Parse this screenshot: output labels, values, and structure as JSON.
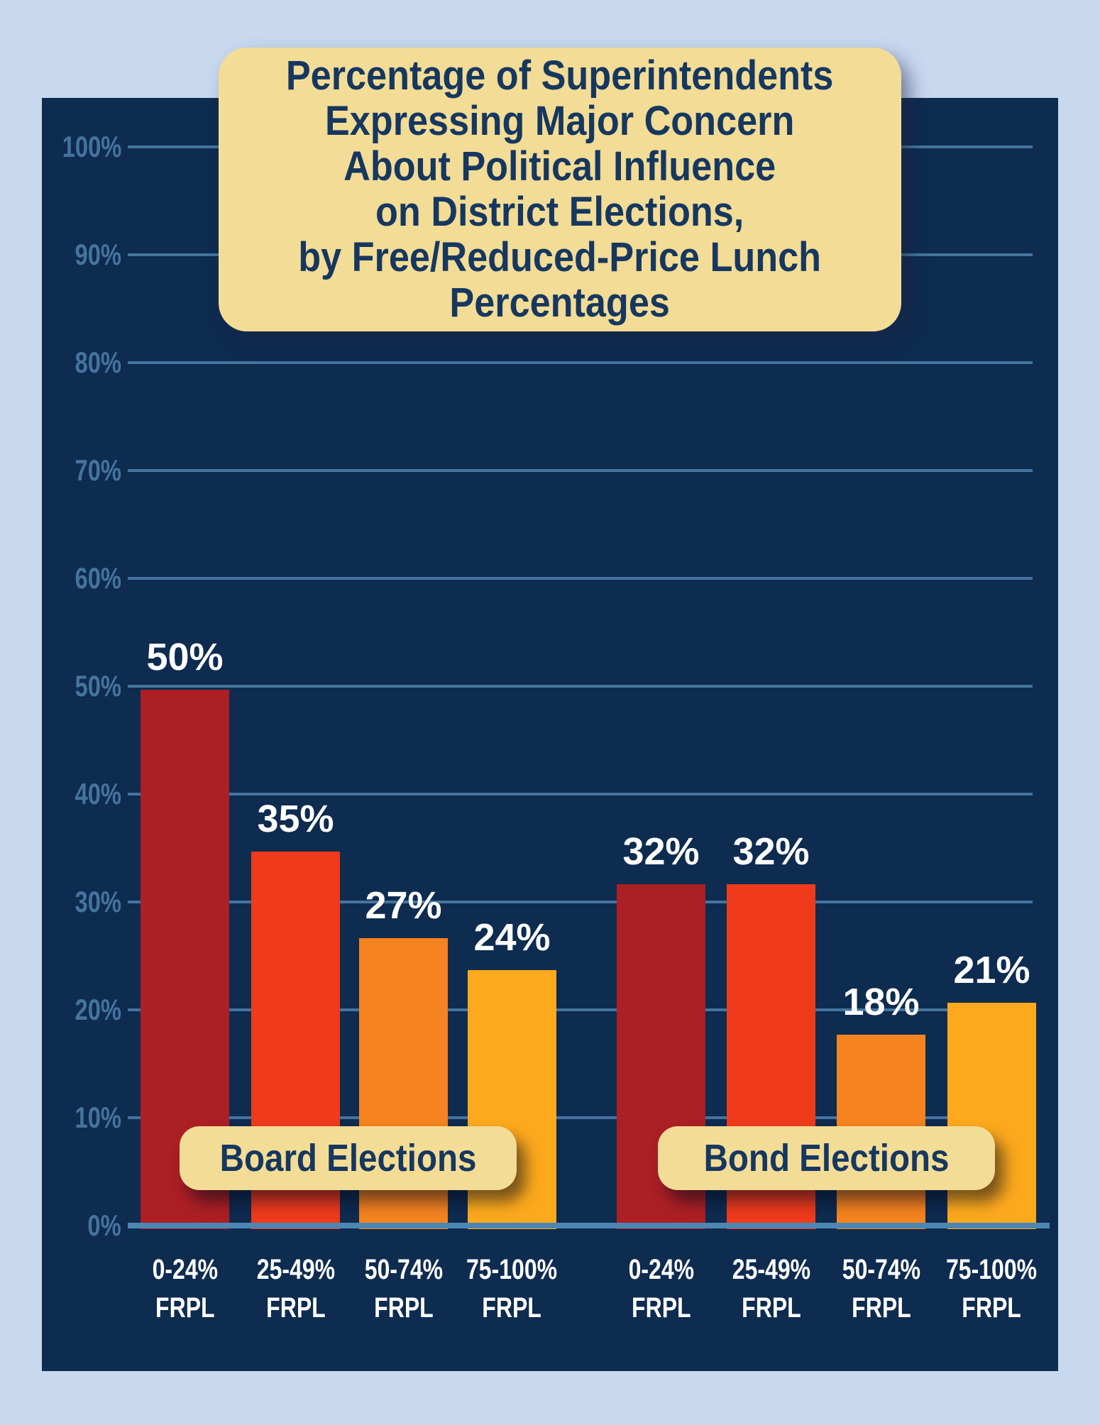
{
  "colors": {
    "page_bg": "#C8D8EF",
    "panel_bg": "#0E2B50",
    "grid": "#45759E",
    "axis_line": "#4E86B2",
    "tick_text": "#44749E",
    "value_text": "#FFFFFF",
    "category_text": "#FFFFFF",
    "box_bg": "#F2DC96",
    "box_text": "#16375F"
  },
  "title": {
    "lines": [
      "Percentage of Superintendents",
      "Expressing Major Concern",
      "About Political Influence",
      "on District Elections,",
      "by Free/Reduced-Price Lunch",
      "Percentages"
    ]
  },
  "chart_data": {
    "type": "bar",
    "title": "Percentage of Superintendents Expressing Major Concern About Political Influence on District Elections, by Free/Reduced-Price Lunch Percentages",
    "categories": [
      "0-24% FRPL",
      "25-49% FRPL",
      "50-74% FRPL",
      "75-100% FRPL"
    ],
    "category_line1": [
      "0-24%",
      "25-49%",
      "50-74%",
      "75-100%"
    ],
    "category_line2": "FRPL",
    "series": [
      {
        "name": "Board Elections",
        "values": [
          50,
          35,
          27,
          24
        ]
      },
      {
        "name": "Bond Elections",
        "values": [
          32,
          32,
          18,
          21
        ]
      }
    ],
    "value_labels": [
      [
        "50%",
        "35%",
        "27%",
        "24%"
      ],
      [
        "32%",
        "32%",
        "18%",
        "21%"
      ]
    ],
    "bar_colors_by_category": [
      "#AC1F24",
      "#EF3A1B",
      "#F5831F",
      "#FDA91D"
    ],
    "ylim": [
      0,
      100
    ],
    "ytick_step": 10,
    "ytick_labels": [
      "100%",
      "90%",
      "80%",
      "70%",
      "60%",
      "50%",
      "40%",
      "30%",
      "20%",
      "10%",
      "0%"
    ],
    "grid": true,
    "legend_position": "none"
  }
}
